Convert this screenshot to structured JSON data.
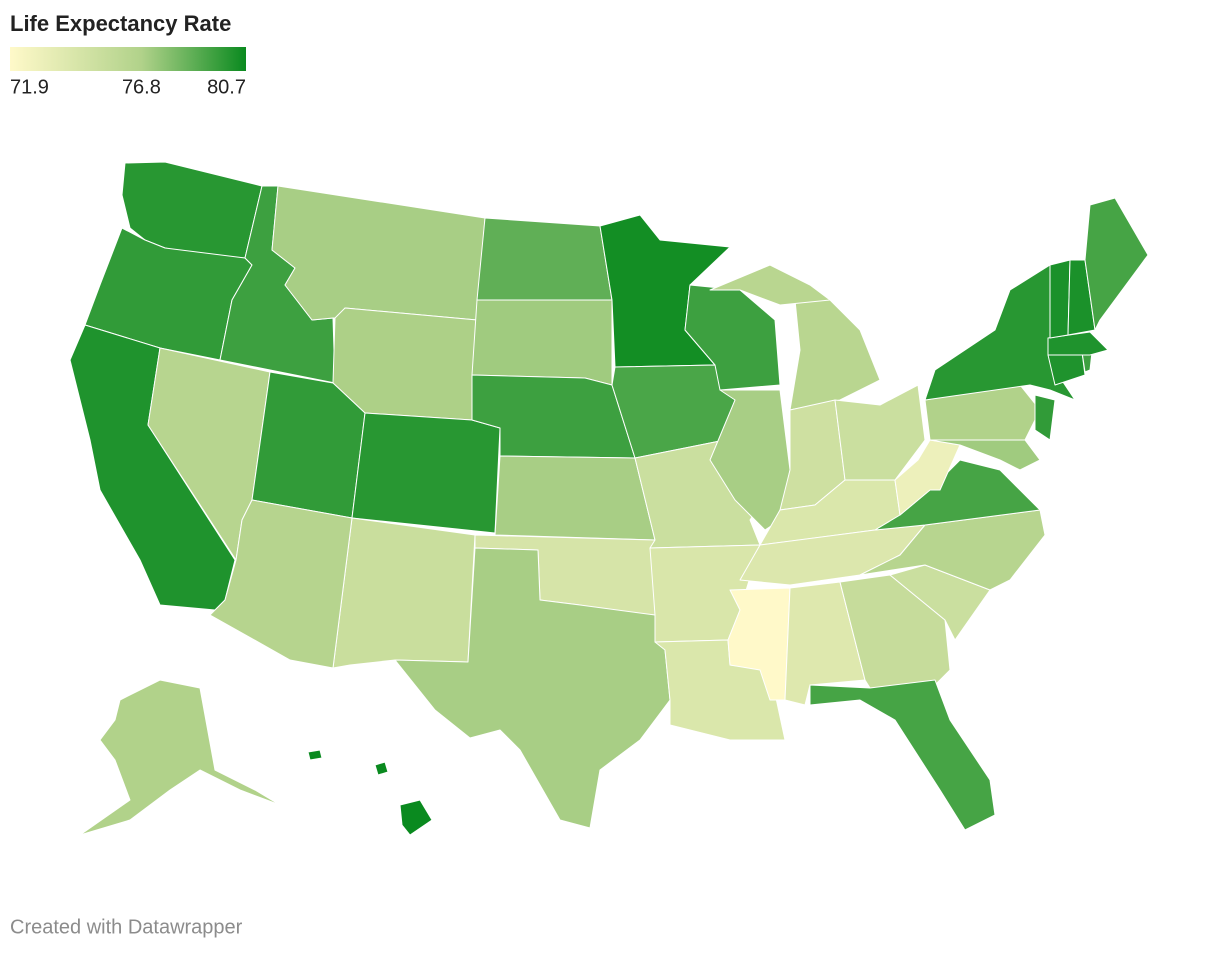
{
  "title": "Life Expectancy Rate",
  "legend": {
    "ticks": [
      71.9,
      76.8,
      80.7
    ],
    "colors": [
      "#fff9c9",
      "#b1d28a",
      "#0a8a1f"
    ]
  },
  "regions": {
    "values": [
      80,
      79.8,
      80.2,
      79.5,
      76.4,
      77,
      76.9,
      79.8,
      80,
      75.3,
      76.5,
      78.7,
      77.2,
      79.5,
      77,
      74.5,
      77,
      80.5,
      79.2,
      75.2,
      74.3,
      74.2,
      79.5,
      77,
      76.3,
      76.3,
      75,
      75.2,
      74.2,
      74.1,
      71.9,
      74,
      75.5,
      79.3,
      75.2,
      76.4,
      79.3,
      73,
      76.8,
      80,
      79.8,
      77.2,
      80.2,
      79.5,
      80.2,
      80.3,
      80.3,
      79.3,
      76.8,
      80.7,
      80.7,
      80.7
    ]
  },
  "footer": "Created with Datawrapper"
}
